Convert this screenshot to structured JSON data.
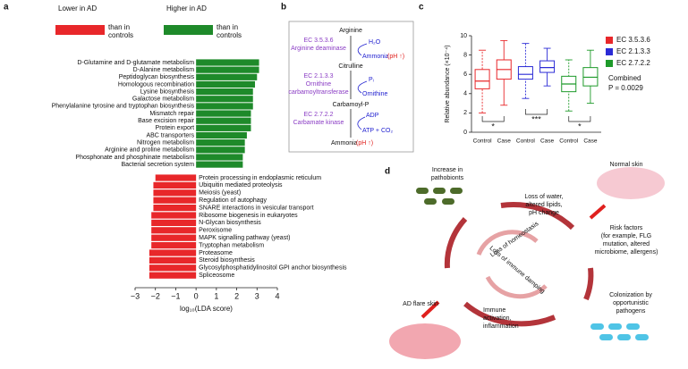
{
  "panel_labels": [
    "a",
    "b",
    "c",
    "d"
  ],
  "chart_data": [
    {
      "type": "barh",
      "xlabel": "log₁₀(LDA score)",
      "xlim": [
        -3,
        4
      ],
      "xticks": [
        {
          "value": -3,
          "label": "−3"
        },
        {
          "value": -2,
          "label": "−2"
        },
        {
          "value": -1,
          "label": "−1"
        },
        0,
        1,
        2,
        3,
        4
      ],
      "series": [
        {
          "name_lines": [
            "Higher in AD",
            "than in",
            "controls"
          ],
          "color": "#1e8a2a",
          "categories": [
            "D-Glutamine and D-glutamate metabolism",
            "D-Alanine metabolism",
            "Peptidoglycan biosynthesis",
            "Homologous recombination",
            "Lysine biosynthesis",
            "Galactose metabolism",
            "Phenylalanine tyrosine and tryptophan biosynthesis",
            "Mismatch repair",
            "Base excision repair",
            "Protein export",
            "ABC transporters",
            "Nitrogen metabolism",
            "Arginine and proline metabolism",
            "Phosphonate and phosphinate metabolism",
            "Bacterial secretion system"
          ],
          "values": [
            3.1,
            3.1,
            3.0,
            2.9,
            2.8,
            2.8,
            2.8,
            2.7,
            2.7,
            2.7,
            2.5,
            2.4,
            2.4,
            2.3,
            2.3
          ]
        },
        {
          "name_lines": [
            "Lower in AD",
            "than in",
            "controls"
          ],
          "color": "#e8272a",
          "categories": [
            "Protein processing in endoplasmic reticulum",
            "Ubiquitin mediated proteolysis",
            "Meiosis (yeast)",
            "Regulation of autophagy",
            "SNARE interactions in vesicular transport",
            "Ribosome biogenesis in  eukaryotes",
            "N-Glycan biosynthesis",
            "Peroxisome",
            "MAPK signalling pathway (yeast)",
            "Tryptophan metabolism",
            "Proteasome",
            "Steroid biosynthesis",
            "Glycosylphosphatidylinositol GPI anchor biosynthesis",
            "Spliceosome"
          ],
          "values": [
            -2.0,
            -2.1,
            -2.1,
            -2.1,
            -2.1,
            -2.2,
            -2.2,
            -2.2,
            -2.2,
            -2.2,
            -2.3,
            -2.3,
            -2.3,
            -2.3
          ]
        }
      ]
    },
    {
      "type": "box",
      "ylabel": "Relative abundance (×10⁻⁴)",
      "ylim": [
        0,
        10
      ],
      "yticks": [
        0,
        2,
        4,
        6,
        8,
        10
      ],
      "categories": [
        "Control",
        "Case",
        "Control",
        "Case",
        "Control",
        "Case"
      ],
      "series": [
        {
          "name": "EC 3.5.3.6",
          "color": "#e8272a",
          "boxes": [
            {
              "min": 2.0,
              "q1": 4.5,
              "median": 5.3,
              "q3": 6.5,
              "max": 8.5
            },
            {
              "min": 2.8,
              "q1": 5.5,
              "median": 6.5,
              "q3": 7.5,
              "max": 9.5
            }
          ]
        },
        {
          "name": "EC 2.1.3.3",
          "color": "#2b2bd6",
          "boxes": [
            {
              "min": 3.5,
              "q1": 5.5,
              "median": 6.0,
              "q3": 6.8,
              "max": 9.2
            },
            {
              "min": 4.8,
              "q1": 6.2,
              "median": 6.7,
              "q3": 7.4,
              "max": 8.7
            }
          ]
        },
        {
          "name": "EC 2.7.2.2",
          "color": "#1e9a2a",
          "boxes": [
            {
              "min": 2.2,
              "q1": 4.2,
              "median": 5.0,
              "q3": 5.8,
              "max": 7.5
            },
            {
              "min": 3.0,
              "q1": 4.8,
              "median": 5.7,
              "q3": 6.7,
              "max": 8.5
            }
          ]
        }
      ],
      "significance": [
        "*",
        "***",
        "*"
      ],
      "annotation_lines": [
        "Combined",
        "P = 0.0029"
      ]
    }
  ],
  "pathway": {
    "arginine": "Arginine",
    "ec1": "EC 3.5.3.6",
    "enzyme1": "Arginine deaminase",
    "h2o": "H₂O",
    "ammonia1": "Ammonia",
    "ph1": "(pH ↑)",
    "citrulline": "Citrulline",
    "ec2": "EC 2.1.3.3",
    "enzyme2a": "Ornithine",
    "enzyme2b": "carbamoyltransferase",
    "pi": "Pᵢ",
    "ornithine": "Ornithine",
    "carbamoyl": "Carbamoyl-P",
    "ec3": "EC 2.7.2.2",
    "enzyme3": "Carbamate kinase",
    "adp": "ADP",
    "atp": "ATP + CO₂",
    "ammonia2": "Ammonia",
    "ph2": "(pH ↑)"
  },
  "model": {
    "normal": "Normal skin",
    "pathobionts": [
      "Increase in",
      "pathobionts"
    ],
    "water": [
      "Loss of water,",
      "altered lipids,",
      "pH change"
    ],
    "risk": [
      "Risk factors",
      "(for example, FLG",
      "mutation, altered",
      "microbiome, allergens)"
    ],
    "homeostasis": "Loss of homeostasis",
    "damping": "Loss of immune damping",
    "flare": "AD flare skin",
    "immune": [
      "Immune",
      "activation,",
      "inflammation"
    ],
    "colonization": [
      "Colonization by",
      "opportunistic",
      "pathogens"
    ]
  }
}
